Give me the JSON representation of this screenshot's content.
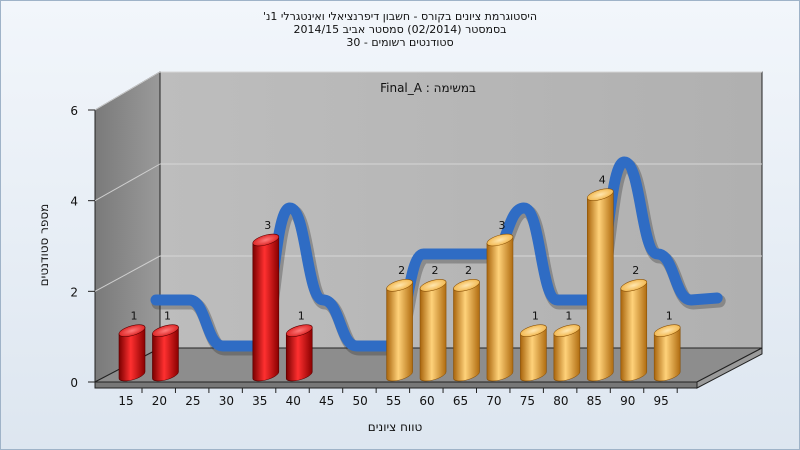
{
  "chart_data": {
    "type": "bar",
    "title_lines": [
      "היסטוגרמת ציונים בקורס - חשבון דיפרנציאלי ואינטגרלי 1נ'",
      "בסמסטר  (02/2014)  סמסטר אביב 2014/15",
      "סטודנטים רשומים - 30"
    ],
    "subtitle": "במשימה : Final_A",
    "xlabel": "טווח ציונים",
    "ylabel": "מספר סטודנטים",
    "ylim": [
      0,
      6
    ],
    "yticks": [
      "0",
      "2",
      "4",
      "6"
    ],
    "categories": [
      "15",
      "20",
      "25",
      "30",
      "35",
      "40",
      "45",
      "50",
      "55",
      "60",
      "65",
      "70",
      "75",
      "80",
      "85",
      "90",
      "95"
    ],
    "values": [
      1,
      1,
      0,
      0,
      3,
      1,
      0,
      0,
      2,
      2,
      2,
      3,
      1,
      1,
      4,
      2,
      1
    ],
    "bar_colors": [
      "#cc1010",
      "#cc1010",
      "#cc1010",
      "#cc1010",
      "#cc1010",
      "#cc1010",
      "#cc1010",
      "#cc1010",
      "#e8a230",
      "#e8a230",
      "#e8a230",
      "#e8a230",
      "#e8a230",
      "#e8a230",
      "#e8a230",
      "#e8a230",
      "#e8a230"
    ],
    "grid": true
  }
}
